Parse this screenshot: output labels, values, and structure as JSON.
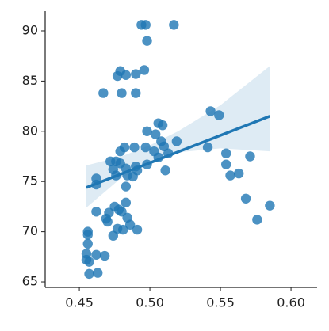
{
  "chart_data": {
    "type": "scatter",
    "x": [
      0.494,
      0.497,
      0.517,
      0.498,
      0.467,
      0.48,
      0.49,
      0.477,
      0.479,
      0.483,
      0.49,
      0.496,
      0.543,
      0.549,
      0.498,
      0.506,
      0.509,
      0.504,
      0.508,
      0.519,
      0.51,
      0.503,
      0.513,
      0.506,
      0.497,
      0.489,
      0.482,
      0.479,
      0.541,
      0.554,
      0.571,
      0.554,
      0.557,
      0.563,
      0.472,
      0.476,
      0.479,
      0.474,
      0.483,
      0.49,
      0.491,
      0.498,
      0.511,
      0.462,
      0.484,
      0.488,
      0.483,
      0.462,
      0.476,
      0.568,
      0.576,
      0.585,
      0.483,
      0.475,
      0.471,
      0.462,
      0.478,
      0.48,
      0.469,
      0.47,
      0.484,
      0.486,
      0.491,
      0.477,
      0.481,
      0.474,
      0.456,
      0.456,
      0.456,
      0.455,
      0.462,
      0.455,
      0.457,
      0.468,
      0.457,
      0.463
    ],
    "values": [
      90.6,
      90.6,
      90.6,
      89.0,
      83.8,
      83.8,
      83.8,
      85.5,
      86.0,
      85.6,
      85.7,
      86.1,
      82.0,
      81.6,
      80.0,
      80.8,
      80.6,
      79.7,
      79.0,
      79.0,
      78.5,
      78.0,
      77.8,
      77.4,
      78.4,
      78.4,
      78.4,
      78.0,
      78.4,
      77.8,
      77.5,
      76.7,
      75.6,
      75.8,
      77.0,
      77.0,
      76.8,
      76.2,
      76.3,
      76.5,
      76.1,
      76.7,
      76.1,
      75.3,
      75.6,
      75.5,
      74.5,
      74.7,
      75.6,
      73.3,
      71.2,
      72.6,
      72.9,
      72.5,
      71.9,
      72.0,
      72.2,
      72.0,
      71.3,
      71.0,
      71.4,
      70.7,
      70.2,
      70.3,
      70.2,
      69.6,
      70.0,
      69.7,
      68.8,
      67.8,
      67.7,
      67.2,
      67.0,
      67.6,
      65.8,
      65.9
    ],
    "color": "#1f77b4",
    "fit": {
      "x": [
        0.455,
        0.585
      ],
      "y": [
        74.4,
        81.5
      ]
    },
    "band": {
      "x": [
        0.455,
        0.48,
        0.5,
        0.52,
        0.55,
        0.585
      ],
      "lower": [
        72.4,
        75.4,
        76.9,
        77.9,
        78.3,
        78.0
      ],
      "upper": [
        76.6,
        77.5,
        78.6,
        80.0,
        82.6,
        86.5
      ]
    },
    "xlim": [
      0.4258,
      0.6185
    ],
    "ylim": [
      64.45,
      91.97
    ],
    "xticks": [
      0.45,
      {
        "value": 0.5,
        "label": "0.50"
      },
      0.55,
      {
        "value": 0.6,
        "label": "0.60"
      }
    ],
    "yticks": [
      65,
      70,
      75,
      80,
      85,
      90
    ]
  }
}
